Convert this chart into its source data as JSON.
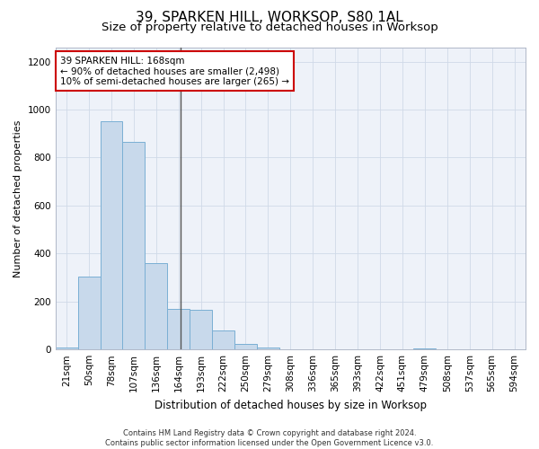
{
  "title": "39, SPARKEN HILL, WORKSOP, S80 1AL",
  "subtitle": "Size of property relative to detached houses in Worksop",
  "xlabel": "Distribution of detached houses by size in Worksop",
  "ylabel": "Number of detached properties",
  "categories": [
    "21sqm",
    "50sqm",
    "78sqm",
    "107sqm",
    "136sqm",
    "164sqm",
    "193sqm",
    "222sqm",
    "250sqm",
    "279sqm",
    "308sqm",
    "336sqm",
    "365sqm",
    "393sqm",
    "422sqm",
    "451sqm",
    "479sqm",
    "508sqm",
    "537sqm",
    "565sqm",
    "594sqm"
  ],
  "values": [
    10,
    305,
    950,
    865,
    360,
    170,
    165,
    80,
    25,
    10,
    0,
    0,
    0,
    0,
    0,
    0,
    5,
    0,
    0,
    0,
    0
  ],
  "bar_color": "#c8d9eb",
  "bar_edge_color": "#7aafd4",
  "property_line_x": 5.1,
  "property_line_color": "#555555",
  "annotation_text": "39 SPARKEN HILL: 168sqm\n← 90% of detached houses are smaller (2,498)\n10% of semi-detached houses are larger (265) →",
  "annotation_box_color": "#ffffff",
  "annotation_box_edge": "#cc0000",
  "ylim": [
    0,
    1260
  ],
  "yticks": [
    0,
    200,
    400,
    600,
    800,
    1000,
    1200
  ],
  "grid_color": "#d0d9e8",
  "background_color": "#eef2f9",
  "footer_text": "Contains HM Land Registry data © Crown copyright and database right 2024.\nContains public sector information licensed under the Open Government Licence v3.0.",
  "title_fontsize": 11,
  "subtitle_fontsize": 9.5,
  "xlabel_fontsize": 8.5,
  "ylabel_fontsize": 8,
  "tick_fontsize": 7.5,
  "annotation_fontsize": 7.5,
  "footer_fontsize": 6
}
